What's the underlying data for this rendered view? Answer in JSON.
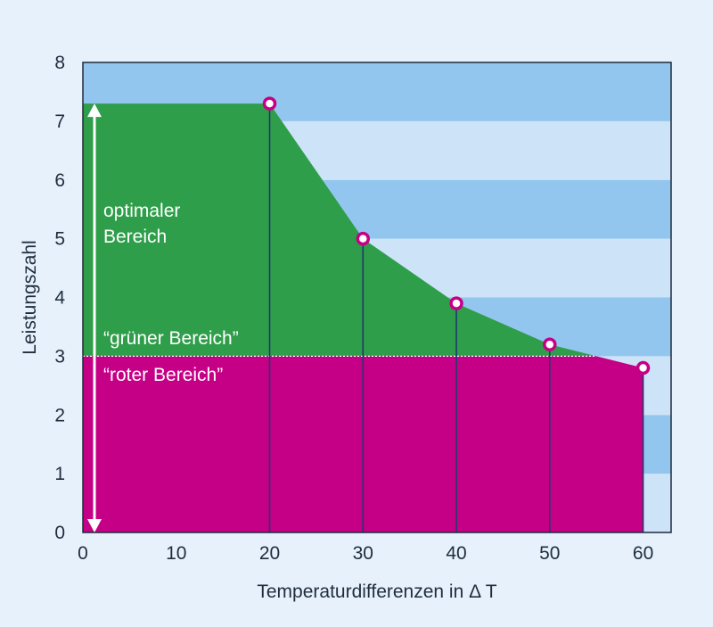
{
  "chart_data": {
    "type": "area",
    "xlabel": "Temperaturdifferenzen in Δ T",
    "ylabel": "Leistungszahl",
    "xlim": [
      0,
      63
    ],
    "ylim": [
      0,
      8
    ],
    "x_ticks": [
      "0",
      "10",
      "20",
      "30",
      "40",
      "50",
      "60"
    ],
    "y_ticks": [
      "0",
      "1",
      "2",
      "3",
      "4",
      "5",
      "6",
      "7",
      "8"
    ],
    "threshold": 3,
    "curve": {
      "x": [
        0,
        20,
        30,
        40,
        50,
        60
      ],
      "y": [
        7.3,
        7.3,
        5.0,
        3.9,
        3.2,
        2.8
      ]
    },
    "markers": {
      "x": [
        20,
        30,
        40,
        50,
        60
      ],
      "y": [
        7.3,
        5.0,
        3.9,
        3.2,
        2.8
      ]
    },
    "arrow_range": [
      0,
      7.3
    ],
    "annotations": {
      "optimal_line1": "optimaler",
      "optimal_line2": "Bereich",
      "green": "“grüner Bereich”",
      "red": "“roter Bereich”"
    },
    "colors": {
      "background": "#e6f1fb",
      "band_dark": "#93c6ee",
      "band_light": "#cde3f7",
      "green": "#2f9e4a",
      "magenta": "#c60086",
      "marker_stroke": "#c60086",
      "drop_line": "#1e3a6e",
      "text": "#1f2d3d",
      "arrow": "#ffffff"
    }
  }
}
